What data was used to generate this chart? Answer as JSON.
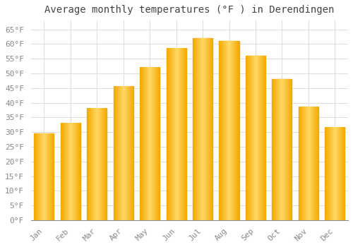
{
  "title": "Average monthly temperatures (°F ) in Derendingen",
  "months": [
    "Jan",
    "Feb",
    "Mar",
    "Apr",
    "May",
    "Jun",
    "Jul",
    "Aug",
    "Sep",
    "Oct",
    "Nov",
    "Dec"
  ],
  "values": [
    29.5,
    33,
    38,
    45.5,
    52,
    58.5,
    62,
    61,
    56,
    48,
    38.5,
    31.5
  ],
  "bar_color_center": "#FFD966",
  "bar_color_edge": "#F5A800",
  "background_color": "#FFFFFF",
  "grid_color": "#DDDDDD",
  "ylim": [
    0,
    68
  ],
  "yticks": [
    0,
    5,
    10,
    15,
    20,
    25,
    30,
    35,
    40,
    45,
    50,
    55,
    60,
    65
  ],
  "title_fontsize": 10,
  "tick_fontsize": 8,
  "title_color": "#444444",
  "tick_color": "#888888",
  "bar_width": 0.75
}
